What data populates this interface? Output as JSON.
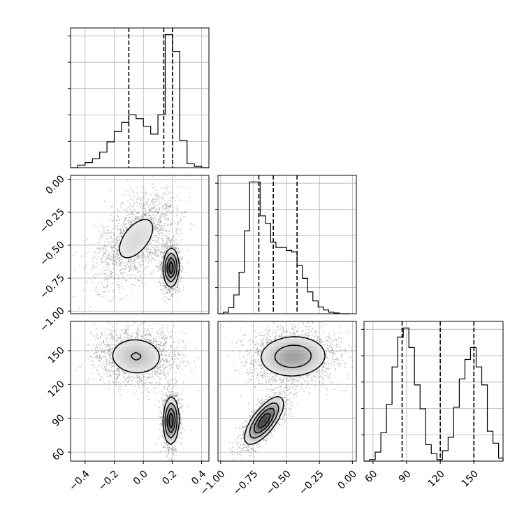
{
  "chart_data": {
    "type": "corner",
    "title": "",
    "parameters": [
      "",
      "",
      ""
    ],
    "grid": true,
    "ranges": [
      [
        -0.5,
        0.45
      ],
      [
        -1.02,
        0.03
      ],
      [
        52,
        176
      ]
    ],
    "ticks": [
      {
        "values": [
          -0.4,
          -0.2,
          0.0,
          0.2,
          0.4
        ],
        "labels": [
          "−0.4",
          "−0.2",
          "0.0",
          "0.2",
          "0.4"
        ]
      },
      {
        "values": [
          -1.0,
          -0.75,
          -0.5,
          -0.25,
          0.0
        ],
        "labels": [
          "−1.00",
          "−0.75",
          "−0.50",
          "−0.25",
          "0.00"
        ]
      },
      {
        "values": [
          60,
          90,
          120,
          150
        ],
        "labels": [
          "60",
          "90",
          "120",
          "150"
        ]
      }
    ],
    "quantiles": [
      [
        -0.1,
        0.14,
        0.2
      ],
      [
        -0.71,
        -0.6,
        -0.42
      ],
      [
        86,
        120,
        150
      ]
    ],
    "histograms": [
      {
        "edges": [
          -0.5,
          -0.45,
          -0.4,
          -0.35,
          -0.3,
          -0.25,
          -0.2,
          -0.15,
          -0.1,
          -0.05,
          0.0,
          0.05,
          0.1,
          0.15,
          0.2,
          0.25,
          0.3,
          0.35,
          0.4,
          0.45
        ],
        "counts": [
          0,
          2,
          4,
          7,
          12,
          20,
          28,
          35,
          41,
          38,
          32,
          26,
          41,
          103,
          90,
          21,
          3,
          1,
          0
        ]
      },
      {
        "edges": [
          -1.02,
          -0.98,
          -0.94,
          -0.9,
          -0.86,
          -0.82,
          -0.78,
          -0.74,
          -0.7,
          -0.66,
          -0.62,
          -0.58,
          -0.54,
          -0.5,
          -0.46,
          -0.42,
          -0.38,
          -0.34,
          -0.3,
          -0.26,
          -0.22,
          -0.18,
          -0.14,
          -0.1,
          -0.06,
          -0.02
        ],
        "counts": [
          0,
          2,
          8,
          25,
          55,
          110,
          175,
          175,
          130,
          120,
          95,
          88,
          88,
          84,
          82,
          64,
          47,
          29,
          17,
          9,
          5,
          2,
          1,
          0,
          0
        ]
      },
      {
        "edges": [
          52,
          57,
          62,
          67,
          72,
          77,
          82,
          87,
          92,
          97,
          102,
          107,
          112,
          117,
          122,
          127,
          132,
          137,
          142,
          147,
          152,
          157,
          162,
          167,
          172,
          176
        ],
        "counts": [
          0,
          1,
          6,
          19,
          38,
          63,
          83,
          89,
          76,
          51,
          35,
          11,
          5,
          1,
          7,
          16,
          36,
          55,
          68,
          76,
          63,
          51,
          20,
          12,
          2
        ]
      }
    ],
    "clusters": [
      {
        "name": "",
        "mean": [
          -0.05,
          -0.45,
          145
        ],
        "sd": [
          0.11,
          0.14,
          10
        ],
        "corr": [
          [
            1,
            0.55,
            -0.05
          ],
          [
            0.55,
            1,
            0.05
          ],
          [
            -0.05,
            0.05,
            1
          ]
        ],
        "weight": 0.58
      },
      {
        "name": "",
        "mean": [
          0.19,
          -0.67,
          88
        ],
        "sd": [
          0.025,
          0.07,
          10
        ],
        "corr": [
          [
            1,
            0.05,
            0.05
          ],
          [
            0.05,
            1,
            0.72
          ],
          [
            0.05,
            0.72,
            1
          ]
        ],
        "weight": 0.42
      }
    ],
    "colors": {
      "line": "#000000",
      "grid": "#b0b0b0",
      "points": "#7f7f7f",
      "density": "#606060"
    }
  }
}
